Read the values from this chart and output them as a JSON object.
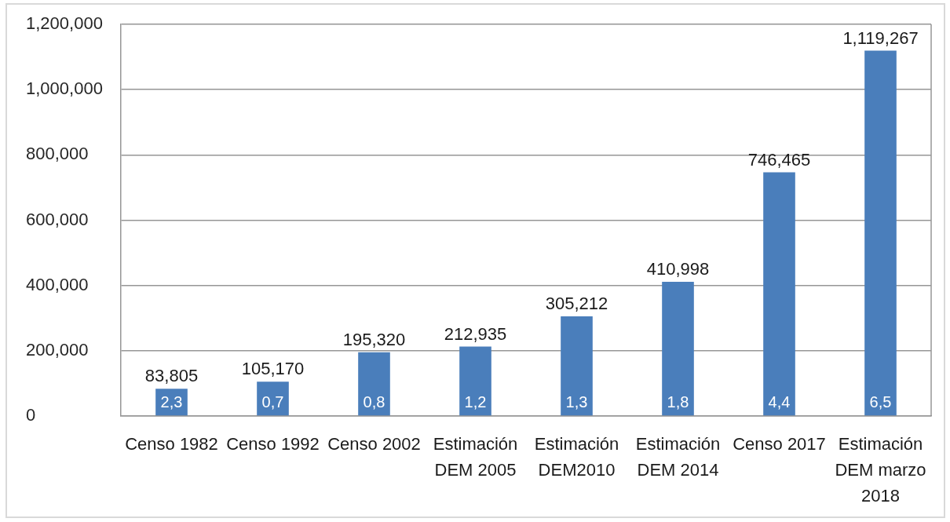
{
  "chart_data": {
    "type": "bar",
    "categories": [
      "Censo 1982",
      "Censo 1992",
      "Censo 2002",
      "Estimación DEM 2005",
      "Estimación DEM2010",
      "Estimación DEM 2014",
      "Censo 2017",
      "Estimación DEM marzo 2018"
    ],
    "values": [
      83805,
      105170,
      195320,
      212935,
      305212,
      410998,
      746465,
      1119267
    ],
    "value_labels": [
      "83,805",
      "105,170",
      "195,320",
      "212,935",
      "305,212",
      "410,998",
      "746,465",
      "1,119,267"
    ],
    "color": "#4a7ebb",
    "ylim": [
      0,
      1200000
    ],
    "yticks": [
      0,
      {
        "value": 200000,
        "label": "200,000"
      },
      {
        "value": 400000,
        "label": "400,000"
      },
      {
        "value": 600000,
        "label": "600,000"
      },
      {
        "value": 800000,
        "label": "800,000"
      },
      {
        "value": 1000000,
        "label": "1,000,000"
      },
      {
        "value": 1200000,
        "label": "1,200,000"
      }
    ],
    "grid": "y",
    "annotations": [
      "2,3",
      "0,7",
      "0,8",
      "1,2",
      "1,3",
      "1,8",
      "4,4",
      "6,5"
    ]
  }
}
